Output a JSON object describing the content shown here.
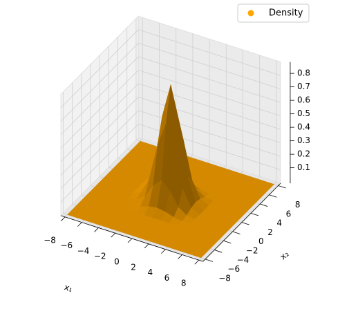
{
  "chart_data": {
    "type": "surface3d",
    "legend": "upper right",
    "color": "#ffa500",
    "series": [
      {
        "name": "Density",
        "color": "#ffa500"
      }
    ],
    "xlabel": "x₁",
    "ylabel": "x₂",
    "xlim": [
      -8.5,
      8.5
    ],
    "ylim": [
      -8.5,
      8.5
    ],
    "zlim": [
      0,
      0.9
    ],
    "xticks": [
      {
        "value": -8,
        "label": "−8"
      },
      {
        "value": -6,
        "label": "−6"
      },
      {
        "value": -4,
        "label": "−4"
      },
      {
        "value": -2,
        "label": "−2"
      },
      0,
      2,
      4,
      6,
      8
    ],
    "yticks": [
      {
        "value": -8,
        "label": "−8"
      },
      {
        "value": -6,
        "label": "−6"
      },
      {
        "value": -4,
        "label": "−4"
      },
      {
        "value": -2,
        "label": "−2"
      },
      0,
      2,
      4,
      6,
      8
    ],
    "zticks": [
      0.1,
      0.2,
      0.3,
      0.4,
      0.5,
      0.6,
      0.7,
      0.8
    ],
    "x": [
      -8,
      -7,
      -6,
      -5,
      -4,
      -3,
      -2,
      -1,
      0,
      1,
      2,
      3,
      4,
      5,
      6,
      7,
      8
    ],
    "y": [
      -8,
      -7,
      -6,
      -5,
      -4,
      -3,
      -2,
      -1,
      0,
      1,
      2,
      3,
      4,
      5,
      6,
      7,
      8
    ],
    "z": [
      [
        0,
        0,
        0,
        0,
        0,
        0,
        0,
        0,
        0,
        0,
        0,
        0,
        0,
        0,
        0,
        0,
        0
      ],
      [
        0,
        0,
        0,
        0,
        0,
        0,
        0,
        0,
        0,
        0,
        0,
        0,
        0,
        0,
        0,
        0,
        0
      ],
      [
        0,
        0,
        0,
        0,
        0,
        0,
        0,
        0,
        0,
        0,
        0,
        0,
        0,
        0,
        0,
        0,
        0
      ],
      [
        0,
        0,
        0,
        0,
        0,
        0,
        0,
        0,
        0,
        0,
        0,
        0,
        0,
        0,
        0,
        0,
        0
      ],
      [
        0,
        0,
        0,
        0,
        0,
        0,
        0,
        0,
        0,
        0,
        0,
        0,
        0,
        0,
        0,
        0,
        0
      ],
      [
        0,
        0,
        0,
        0,
        0,
        0,
        0.01,
        0.03,
        0.04,
        0.03,
        0.01,
        0,
        0,
        0,
        0,
        0,
        0
      ],
      [
        0,
        0,
        0,
        0,
        0,
        0.01,
        0.05,
        0.15,
        0.21,
        0.15,
        0.05,
        0.01,
        0,
        0,
        0,
        0,
        0
      ],
      [
        0,
        0,
        0,
        0,
        0,
        0.03,
        0.15,
        0.42,
        0.6,
        0.42,
        0.15,
        0.03,
        0,
        0,
        0,
        0,
        0
      ],
      [
        0,
        0,
        0,
        0,
        0,
        0.04,
        0.21,
        0.6,
        0.85,
        0.6,
        0.21,
        0.04,
        0,
        0,
        0,
        0,
        0
      ],
      [
        0,
        0,
        0,
        0,
        0,
        0.03,
        0.15,
        0.42,
        0.6,
        0.42,
        0.15,
        0.03,
        0,
        0,
        0,
        0,
        0
      ],
      [
        0,
        0,
        0,
        0,
        0,
        0.01,
        0.05,
        0.15,
        0.21,
        0.15,
        0.05,
        0.01,
        0,
        0,
        0,
        0,
        0
      ],
      [
        0,
        0,
        0,
        0,
        0,
        0,
        0.01,
        0.03,
        0.04,
        0.03,
        0.01,
        0,
        0,
        0,
        0,
        0,
        0
      ],
      [
        0,
        0,
        0,
        0,
        0,
        0,
        0,
        0,
        0,
        0,
        0,
        0,
        0,
        0,
        0,
        0,
        0
      ],
      [
        0,
        0,
        0,
        0,
        0,
        0,
        0,
        0,
        0,
        0,
        0,
        0,
        0,
        0,
        0,
        0,
        0
      ],
      [
        0,
        0,
        0,
        0,
        0,
        0,
        0,
        0,
        0,
        0,
        0,
        0,
        0,
        0,
        0,
        0,
        0
      ],
      [
        0,
        0,
        0,
        0,
        0,
        0,
        0,
        0,
        0,
        0,
        0,
        0,
        0,
        0,
        0,
        0,
        0
      ],
      [
        0,
        0,
        0,
        0,
        0,
        0,
        0,
        0,
        0,
        0,
        0,
        0,
        0,
        0,
        0,
        0,
        0
      ]
    ]
  }
}
